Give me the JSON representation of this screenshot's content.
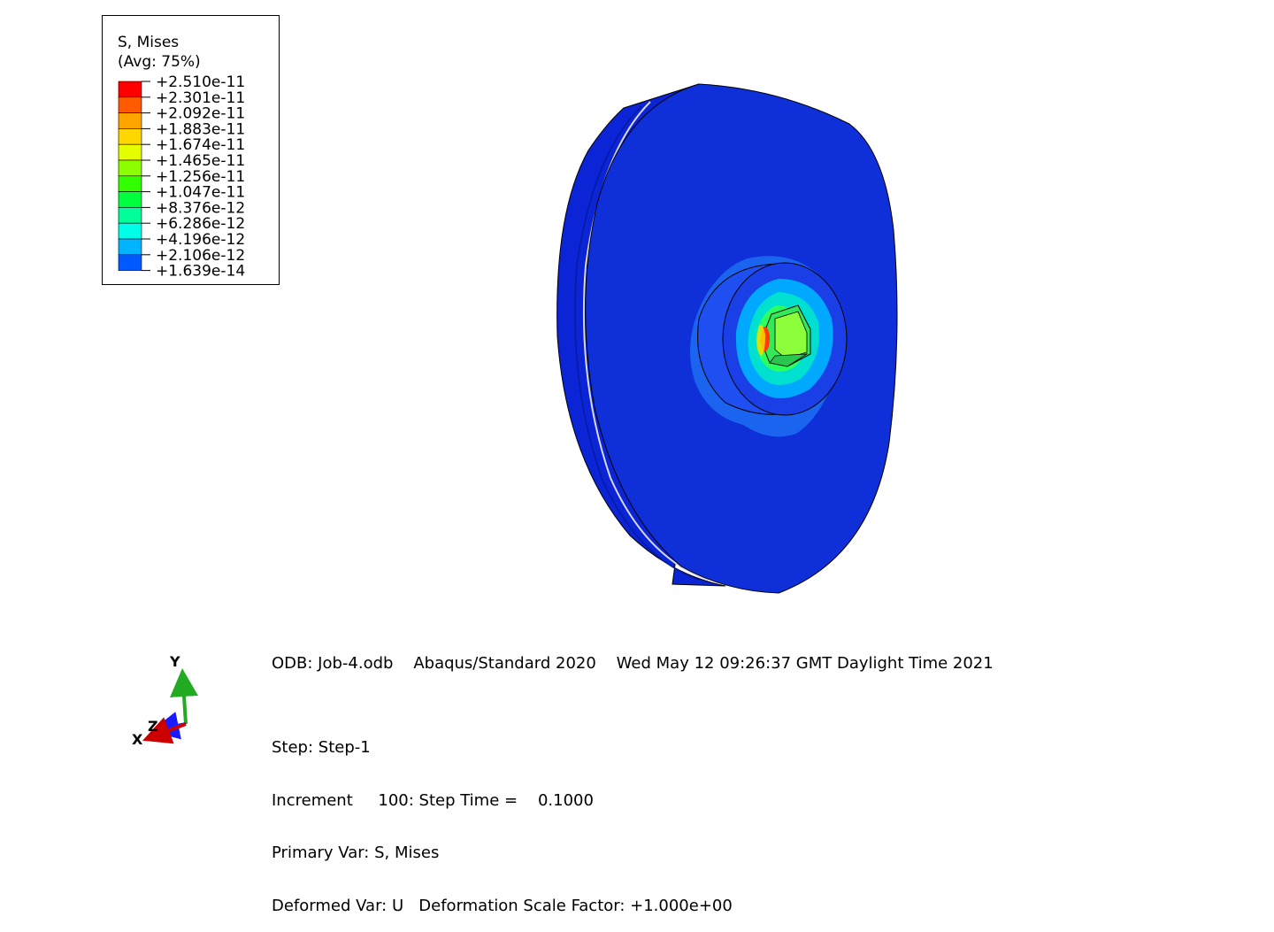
{
  "legend": {
    "title_line1": "S, Mises",
    "title_line2": "(Avg: 75%)",
    "entries": [
      {
        "value": "+2.510e-11",
        "color": "#ff0000"
      },
      {
        "value": "+2.301e-11",
        "color": "#ff5a00"
      },
      {
        "value": "+2.092e-11",
        "color": "#ffa500"
      },
      {
        "value": "+1.883e-11",
        "color": "#ffd700"
      },
      {
        "value": "+1.674e-11",
        "color": "#e6ff00"
      },
      {
        "value": "+1.465e-11",
        "color": "#8cff00"
      },
      {
        "value": "+1.256e-11",
        "color": "#32ff00"
      },
      {
        "value": "+1.047e-11",
        "color": "#00ff3c"
      },
      {
        "value": "+8.376e-12",
        "color": "#00ff9b"
      },
      {
        "value": "+6.286e-12",
        "color": "#00ffe6"
      },
      {
        "value": "+4.196e-12",
        "color": "#00b4ff"
      },
      {
        "value": "+2.106e-12",
        "color": "#005aff"
      },
      {
        "value": "+1.639e-14",
        "color": "#0000ff"
      }
    ]
  },
  "info": {
    "header": "ODB: Job-4.odb    Abaqus/Standard 2020    Wed May 12 09:26:37 GMT Daylight Time 2021",
    "step": "Step: Step-1",
    "increment": "Increment     100: Step Time =    0.1000",
    "primary_var": "Primary Var: S, Mises",
    "deformed_var": "Deformed Var: U   Deformation Scale Factor: +1.000e+00"
  },
  "triad": {
    "x_label": "X",
    "y_label": "Y",
    "z_label": "Z",
    "x_color": "#cc0000",
    "y_color": "#22aa22",
    "z_color": "#1a1aff"
  },
  "model": {
    "base_color": "#0f2fd8"
  }
}
